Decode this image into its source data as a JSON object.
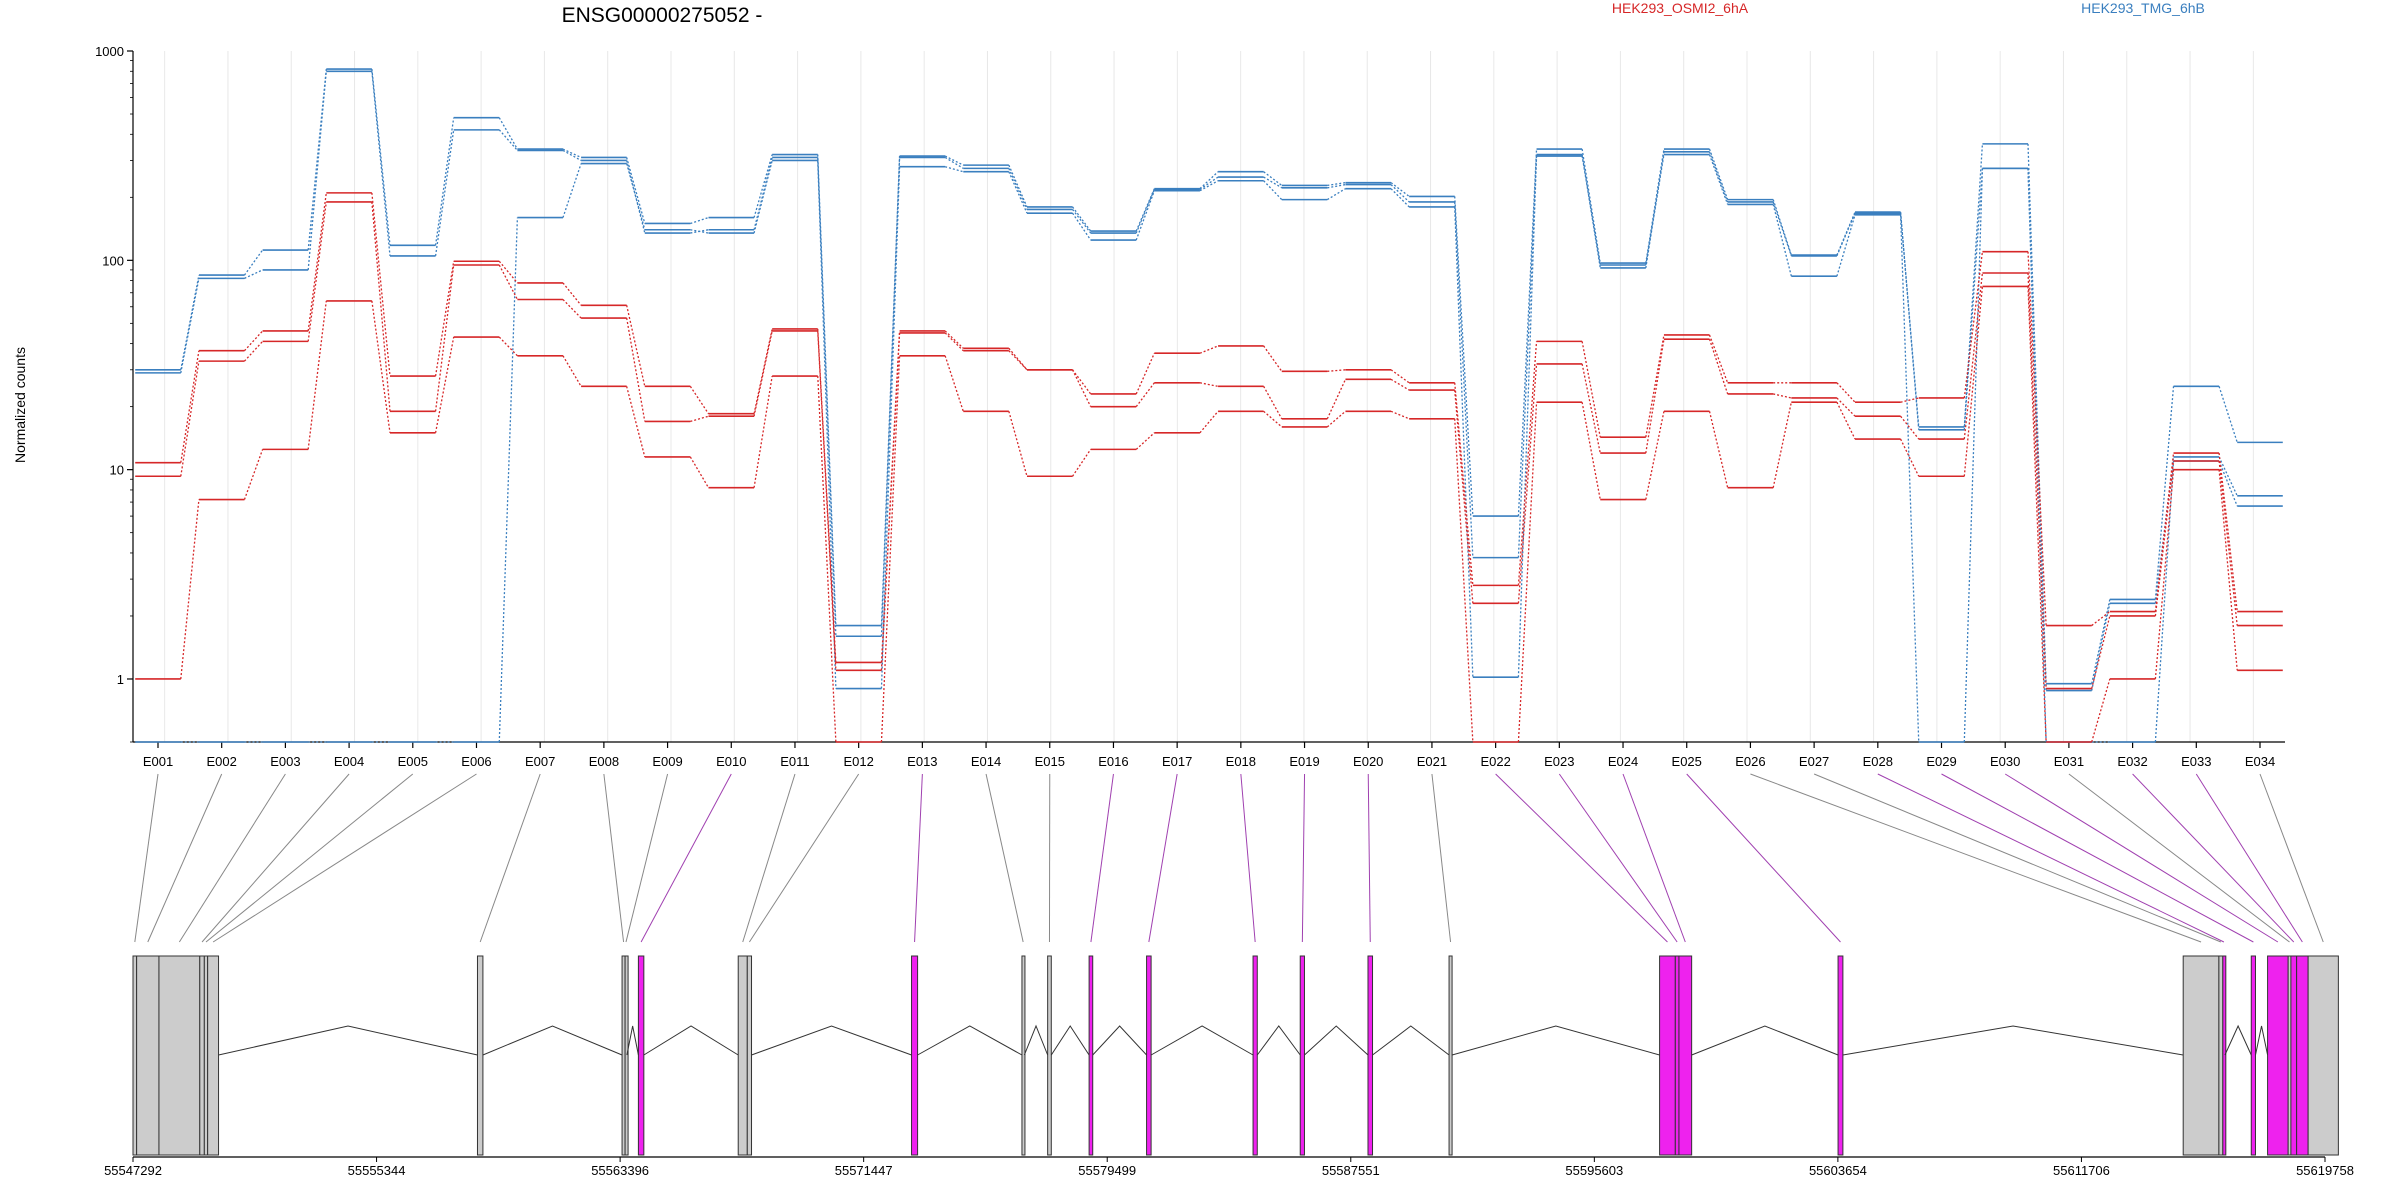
{
  "chart_data": {
    "type": "line",
    "title": "ENSG00000275052 -",
    "ylabel": "Normalized counts",
    "yscale": "log",
    "ylim": [
      0.5,
      1000
    ],
    "yticks": [
      1,
      10,
      100,
      1000
    ],
    "ytick_labels": [
      "1",
      "10",
      "100",
      "1000"
    ],
    "categories": [
      "E001",
      "E002",
      "E003",
      "E004",
      "E005",
      "E006",
      "E007",
      "E008",
      "E009",
      "E010",
      "E011",
      "E012",
      "E013",
      "E014",
      "E015",
      "E016",
      "E017",
      "E018",
      "E019",
      "E020",
      "E021",
      "E022",
      "E023",
      "E024",
      "E025",
      "E026",
      "E027",
      "E028",
      "E029",
      "E030",
      "E031",
      "E032",
      "E033",
      "E034"
    ],
    "legend": [
      {
        "label": "HEK293_OSMI2_6hA",
        "color": "#d62728"
      },
      {
        "label": "HEK293_TMG_6hB",
        "color": "#3a7fbf"
      }
    ],
    "series": [
      {
        "group": "HEK293_TMG_6hB",
        "color": "#3a7fbf",
        "values": [
          30,
          85,
          112,
          820,
          118,
          480,
          340,
          310,
          150,
          160,
          320,
          1.8,
          315,
          285,
          180,
          138,
          220,
          265,
          228,
          235,
          202,
          6,
          340,
          97,
          340,
          195,
          106,
          170,
          16,
          360,
          0.95,
          2.4,
          25,
          13.5
        ]
      },
      {
        "group": "HEK293_TMG_6hB",
        "color": "#3a7fbf",
        "values": [
          29,
          82,
          90,
          800,
          105,
          420,
          335,
          300,
          135,
          140,
          310,
          1.6,
          310,
          275,
          175,
          135,
          218,
          250,
          222,
          230,
          190,
          3.8,
          320,
          92,
          330,
          190,
          105,
          168,
          15.5,
          275,
          0.88,
          2.3,
          11.5,
          7.5
        ]
      },
      {
        "group": "HEK293_TMG_6hB",
        "color": "#3a7fbf",
        "values": [
          0.5,
          0.5,
          0.5,
          0.5,
          0.5,
          0.5,
          160,
          290,
          140,
          135,
          300,
          0.9,
          280,
          265,
          168,
          125,
          215,
          240,
          195,
          220,
          180,
          1.02,
          315,
          95,
          320,
          185,
          84,
          165,
          0.5,
          275,
          0.5,
          0.5,
          11,
          6.7
        ]
      },
      {
        "group": "HEK293_OSMI2_6hA",
        "color": "#d62728",
        "values": [
          10.8,
          37,
          46,
          210,
          28,
          99,
          78,
          61,
          25,
          18.5,
          47,
          1.2,
          46,
          38,
          30,
          23,
          36,
          39,
          29.5,
          30,
          26,
          2.8,
          41,
          14.3,
          44,
          26,
          26,
          21,
          22,
          110,
          1.8,
          2.1,
          12,
          2.1
        ]
      },
      {
        "group": "HEK293_OSMI2_6hA",
        "color": "#d62728",
        "values": [
          9.3,
          33,
          41,
          190,
          19,
          95,
          65,
          53,
          17,
          18,
          46,
          1.1,
          45,
          37,
          30,
          20,
          26,
          25,
          17.5,
          27,
          24,
          2.3,
          32,
          12,
          42,
          23,
          22,
          18,
          14,
          87,
          0.9,
          2.0,
          11,
          1.8
        ]
      },
      {
        "group": "HEK293_OSMI2_6hA",
        "color": "#d62728",
        "values": [
          1.0,
          7.2,
          12.5,
          64,
          15,
          43,
          35,
          25,
          11.5,
          8.2,
          28,
          0.5,
          35,
          19,
          9.3,
          12.5,
          15,
          19,
          16,
          19,
          17.5,
          0.5,
          21,
          7.2,
          19,
          8.2,
          21,
          14,
          9.3,
          75,
          0.5,
          1.0,
          10,
          1.1
        ]
      }
    ],
    "gene_axis": {
      "ticks": [
        "55547292",
        "55555344",
        "55563396",
        "55571447",
        "55579499",
        "55587551",
        "55595603",
        "55603654",
        "55611706",
        "55619758"
      ],
      "exons": [
        {
          "id": "E001",
          "start": 55547292,
          "end": 55547412,
          "highlight": false
        },
        {
          "id": "E002",
          "start": 55547412,
          "end": 55548150,
          "highlight": false
        },
        {
          "id": "E003",
          "start": 55548150,
          "end": 55549500,
          "highlight": false
        },
        {
          "id": "E004",
          "start": 55549500,
          "end": 55549650,
          "highlight": false
        },
        {
          "id": "E005",
          "start": 55549650,
          "end": 55549760,
          "highlight": false
        },
        {
          "id": "E006",
          "start": 55549760,
          "end": 55550120,
          "highlight": false
        },
        {
          "id": "E007",
          "start": 55558680,
          "end": 55558860,
          "highlight": false
        },
        {
          "id": "E008",
          "start": 55563460,
          "end": 55563560,
          "highlight": false
        },
        {
          "id": "E009",
          "start": 55563560,
          "end": 55563620,
          "highlight": false
        },
        {
          "id": "E010",
          "start": 55564000,
          "end": 55564180,
          "highlight": true
        },
        {
          "id": "E011",
          "start": 55567300,
          "end": 55567600,
          "highlight": false
        },
        {
          "id": "E012",
          "start": 55567600,
          "end": 55567740,
          "highlight": false
        },
        {
          "id": "E013",
          "start": 55573030,
          "end": 55573230,
          "highlight": true
        },
        {
          "id": "E014",
          "start": 55576680,
          "end": 55576760,
          "highlight": false
        },
        {
          "id": "E015",
          "start": 55577530,
          "end": 55577650,
          "highlight": false
        },
        {
          "id": "E016",
          "start": 55578900,
          "end": 55579020,
          "highlight": true
        },
        {
          "id": "E017",
          "start": 55580800,
          "end": 55580950,
          "highlight": true
        },
        {
          "id": "E018",
          "start": 55584320,
          "end": 55584460,
          "highlight": true
        },
        {
          "id": "E019",
          "start": 55585880,
          "end": 55586020,
          "highlight": true
        },
        {
          "id": "E020",
          "start": 55588120,
          "end": 55588270,
          "highlight": true
        },
        {
          "id": "E021",
          "start": 55590800,
          "end": 55590900,
          "highlight": false
        },
        {
          "id": "E022",
          "start": 55597760,
          "end": 55598280,
          "highlight": true
        },
        {
          "id": "E023",
          "start": 55598280,
          "end": 55598400,
          "highlight": true
        },
        {
          "id": "E024",
          "start": 55598400,
          "end": 55598820,
          "highlight": true
        },
        {
          "id": "E025",
          "start": 55603660,
          "end": 55603820,
          "highlight": true
        },
        {
          "id": "E026",
          "start": 55615070,
          "end": 55616250,
          "highlight": false
        },
        {
          "id": "E027",
          "start": 55616250,
          "end": 55616380,
          "highlight": false
        },
        {
          "id": "E028",
          "start": 55616380,
          "end": 55616450,
          "highlight": true
        },
        {
          "id": "E029",
          "start": 55617320,
          "end": 55617460,
          "highlight": true
        },
        {
          "id": "E030",
          "start": 55617860,
          "end": 55618540,
          "highlight": true
        },
        {
          "id": "E031",
          "start": 55618540,
          "end": 55618630,
          "highlight": false
        },
        {
          "id": "E032",
          "start": 55618630,
          "end": 55618820,
          "highlight": true
        },
        {
          "id": "E033",
          "start": 55618820,
          "end": 55619200,
          "highlight": true
        },
        {
          "id": "E034",
          "start": 55619200,
          "end": 55620200,
          "highlight": false
        }
      ]
    }
  }
}
